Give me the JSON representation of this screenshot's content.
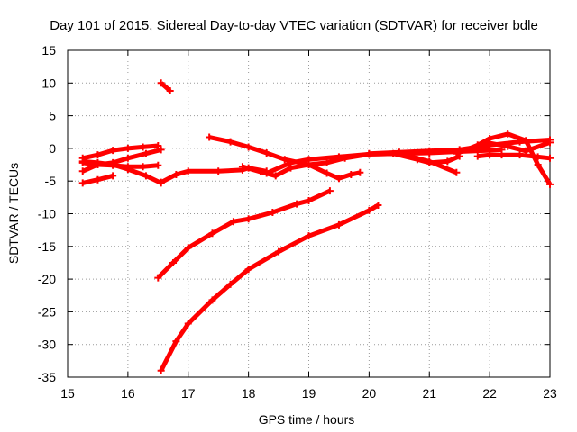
{
  "chart_data": {
    "type": "line",
    "title": "Day 101 of 2015, Sidereal Day-to-day VTEC variation (SDTVAR) for receiver bdle",
    "xlabel": "GPS time / hours",
    "ylabel": "SDTVAR / TECUs",
    "xlim": [
      15,
      23
    ],
    "ylim": [
      -35,
      15
    ],
    "xticks": [
      15,
      16,
      17,
      18,
      19,
      20,
      21,
      22,
      23
    ],
    "yticks": [
      15,
      10,
      5,
      0,
      -5,
      -10,
      -15,
      -20,
      -25,
      -30,
      -35
    ],
    "grid": true,
    "legend": "none",
    "color": "#ff0000",
    "series": [
      {
        "name": "s1",
        "x": [
          15.25,
          15.5,
          15.75,
          16.0,
          16.25,
          16.5
        ],
        "y": [
          -1.5,
          -1.0,
          -0.3,
          0.0,
          0.2,
          0.4
        ]
      },
      {
        "name": "s2",
        "x": [
          15.25,
          15.5,
          15.75,
          16.0,
          16.25,
          16.5
        ],
        "y": [
          -2.2,
          -2.5,
          -2.6,
          -2.8,
          -2.8,
          -2.6
        ]
      },
      {
        "name": "s3",
        "x": [
          15.25,
          15.5,
          15.75,
          16.0,
          16.3,
          16.55
        ],
        "y": [
          -3.5,
          -2.5,
          -2.2,
          -1.5,
          -0.8,
          -0.2
        ]
      },
      {
        "name": "s4",
        "x": [
          15.25,
          15.5,
          15.75,
          16.0,
          16.3,
          16.55
        ],
        "y": [
          -2.0,
          -2.2,
          -2.5,
          -3.2,
          -4.2,
          -5.3
        ]
      },
      {
        "name": "s5",
        "x": [
          15.25,
          15.5,
          15.75
        ],
        "y": [
          -5.3,
          -4.8,
          -4.2
        ]
      },
      {
        "name": "s6",
        "x": [
          16.55,
          16.7
        ],
        "y": [
          10.0,
          8.8
        ]
      },
      {
        "name": "s7",
        "x": [
          16.55,
          16.8,
          17.0,
          17.5,
          17.9,
          18.0,
          18.3
        ],
        "y": [
          -5.2,
          -4.0,
          -3.5,
          -3.5,
          -3.3,
          -3.0,
          -3.5
        ]
      },
      {
        "name": "s8",
        "x": [
          17.9,
          18.2,
          18.45,
          18.7,
          19.0,
          19.3,
          19.5,
          19.7,
          19.85
        ],
        "y": [
          -2.8,
          -3.6,
          -4.2,
          -3.0,
          -2.5,
          -3.8,
          -4.6,
          -4.0,
          -3.7
        ]
      },
      {
        "name": "s9",
        "x": [
          17.35,
          17.7,
          18.0,
          18.3,
          18.6,
          19.0,
          19.3,
          19.6,
          20.0,
          20.5,
          21.0,
          21.5,
          22.0,
          22.2
        ],
        "y": [
          1.7,
          1.0,
          0.2,
          -0.7,
          -1.7,
          -2.5,
          -2.2,
          -1.5,
          -0.9,
          -0.8,
          -0.7,
          -0.5,
          -0.3,
          -0.2
        ]
      },
      {
        "name": "s10",
        "x": [
          18.3,
          18.7,
          19.0,
          19.5,
          20.0,
          20.5,
          21.0,
          21.45
        ],
        "y": [
          -3.8,
          -2.2,
          -1.7,
          -1.3,
          -0.9,
          -0.8,
          -2.0,
          -3.7
        ]
      },
      {
        "name": "s11",
        "x": [
          20.0,
          20.5,
          21.0,
          21.5,
          22.0,
          22.5,
          23.0
        ],
        "y": [
          -0.8,
          -0.6,
          -0.4,
          -0.2,
          0.5,
          1.0,
          1.3
        ]
      },
      {
        "name": "s12",
        "x": [
          20.4,
          20.8,
          21.0,
          21.3,
          21.5
        ],
        "y": [
          -0.8,
          -1.7,
          -2.2,
          -2.0,
          -1.2
        ]
      },
      {
        "name": "s13",
        "x": [
          21.45,
          21.8,
          22.0,
          22.3,
          22.6,
          22.8,
          23.0
        ],
        "y": [
          -0.8,
          0.5,
          1.5,
          2.2,
          1.2,
          -2.5,
          -5.5
        ]
      },
      {
        "name": "s14",
        "x": [
          21.8,
          22.0,
          22.2,
          22.5,
          22.8,
          23.0
        ],
        "y": [
          -1.2,
          -1.0,
          -1.0,
          -1.0,
          -1.3,
          -1.5
        ]
      },
      {
        "name": "s15",
        "x": [
          21.8,
          22.0,
          22.3,
          22.6,
          23.0
        ],
        "y": [
          0.2,
          0.8,
          0.3,
          -0.4,
          0.9
        ]
      },
      {
        "name": "s16",
        "x": [
          16.5,
          16.75,
          17.0,
          17.4,
          17.75,
          18.0,
          18.4,
          18.8,
          19.0,
          19.35
        ],
        "y": [
          -19.8,
          -17.5,
          -15.2,
          -13.0,
          -11.2,
          -10.8,
          -9.8,
          -8.5,
          -8.0,
          -6.5
        ]
      },
      {
        "name": "s17",
        "x": [
          16.55,
          16.8,
          17.0,
          17.4,
          17.7,
          18.0,
          18.5,
          19.0,
          19.5,
          20.0,
          20.15
        ],
        "y": [
          -34.0,
          -29.5,
          -26.8,
          -23.2,
          -20.8,
          -18.5,
          -15.8,
          -13.4,
          -11.7,
          -9.5,
          -8.7
        ]
      }
    ]
  }
}
